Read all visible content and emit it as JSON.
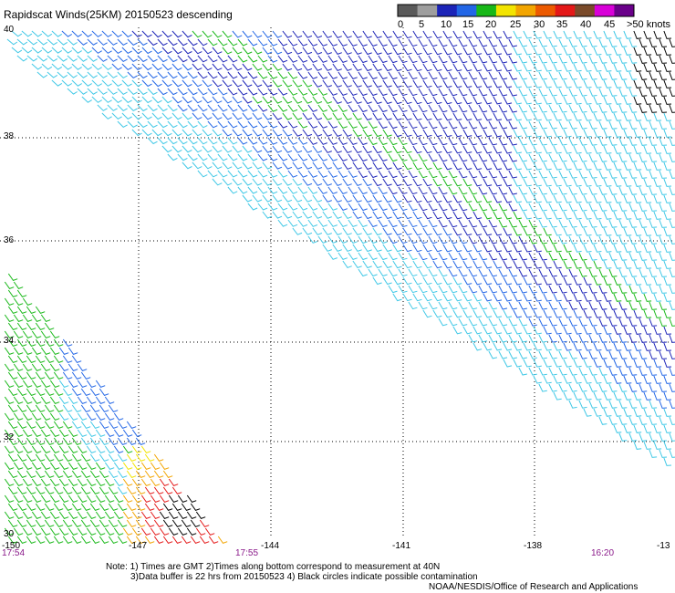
{
  "title": "Rapidscat Winds(25KM) 20150523 descending",
  "legend": {
    "labels": [
      "0",
      "5",
      "10",
      "15",
      "20",
      "25",
      "30",
      "35",
      "40",
      "45",
      ">50 knots"
    ],
    "colors": [
      "#5a5a5a",
      "#9e9e9e",
      "#1c24b8",
      "#2266e6",
      "#18b818",
      "#f2e400",
      "#f2a500",
      "#ec5a00",
      "#e41818",
      "#7a4a2a",
      "#d800d8",
      "#6a008a"
    ]
  },
  "axes": {
    "y_labels": [
      "40",
      "38",
      "36",
      "34",
      "32",
      "30"
    ],
    "x_labels": [
      "-150",
      "-147",
      "-144",
      "-141",
      "-138",
      "-13"
    ]
  },
  "times": [
    "17:54",
    "17:55",
    "16:20"
  ],
  "notes": {
    "line1": "Note: 1) Times are GMT 2)Times along bottom correspond to measurement at 40N",
    "line2": "3)Data buffer is 22 hrs from 20150523 4) Black circles indicate possible contamination",
    "line3": "NOAA/NESDIS/Office of Research and Applications"
  },
  "wind_colors": {
    "light": "#40c8e6",
    "mid": "#2266e6",
    "dark": "#1c24b8",
    "green": "#18b818",
    "yellow": "#f2e400",
    "orange": "#f2a500",
    "red": "#e41818",
    "brown": "#7a4a2a",
    "black": "#000000",
    "grid": "#000000"
  }
}
